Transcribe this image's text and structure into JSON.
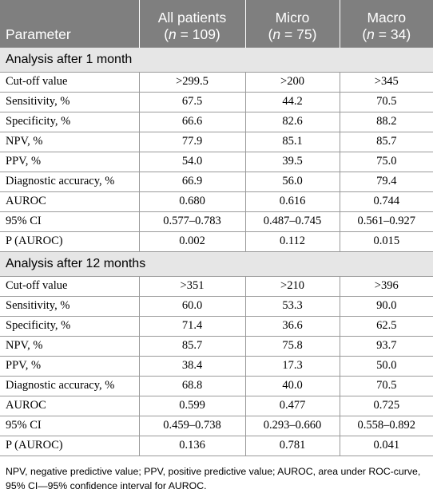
{
  "header": {
    "parameter": "Parameter",
    "cols": [
      {
        "name": "All patients",
        "n_prefix": "(",
        "n_var": "n",
        "n_eq": " = 109)"
      },
      {
        "name": "Micro",
        "n_prefix": "(",
        "n_var": "n",
        "n_eq": " = 75)"
      },
      {
        "name": "Macro",
        "n_prefix": "(",
        "n_var": "n",
        "n_eq": " = 34)"
      }
    ]
  },
  "sections": [
    {
      "title": "Analysis after 1 month",
      "rows": [
        {
          "label": "Cut-off value",
          "values": [
            ">299.5",
            ">200",
            ">345"
          ]
        },
        {
          "label": "Sensitivity, %",
          "values": [
            "67.5",
            "44.2",
            "70.5"
          ]
        },
        {
          "label": "Specificity, %",
          "values": [
            "66.6",
            "82.6",
            "88.2"
          ]
        },
        {
          "label": "NPV, %",
          "values": [
            "77.9",
            "85.1",
            "85.7"
          ]
        },
        {
          "label": "PPV, %",
          "values": [
            "54.0",
            "39.5",
            "75.0"
          ]
        },
        {
          "label": "Diagnostic accuracy, %",
          "values": [
            "66.9",
            "56.0",
            "79.4"
          ]
        },
        {
          "label": "AUROC",
          "values": [
            "0.680",
            "0.616",
            "0.744"
          ]
        },
        {
          "label": "95% CI",
          "values": [
            "0.577–0.783",
            "0.487–0.745",
            "0.561–0.927"
          ]
        },
        {
          "label": "P (AUROC)",
          "values": [
            "0.002",
            "0.112",
            "0.015"
          ]
        }
      ]
    },
    {
      "title": "Analysis after 12 months",
      "rows": [
        {
          "label": "Cut-off value",
          "values": [
            ">351",
            ">210",
            ">396"
          ]
        },
        {
          "label": "Sensitivity, %",
          "values": [
            "60.0",
            "53.3",
            "90.0"
          ]
        },
        {
          "label": "Specificity, %",
          "values": [
            "71.4",
            "36.6",
            "62.5"
          ]
        },
        {
          "label": "NPV, %",
          "values": [
            "85.7",
            "75.8",
            "93.7"
          ]
        },
        {
          "label": "PPV, %",
          "values": [
            "38.4",
            "17.3",
            "50.0"
          ]
        },
        {
          "label": "Diagnostic accuracy, %",
          "values": [
            "68.8",
            "40.0",
            "70.5"
          ]
        },
        {
          "label": "AUROC",
          "values": [
            "0.599",
            "0.477",
            "0.725"
          ]
        },
        {
          "label": "95% CI",
          "values": [
            "0.459–0.738",
            "0.293–0.660",
            "0.558–0.892"
          ]
        },
        {
          "label": "P (AUROC)",
          "values": [
            "0.136",
            "0.781",
            "0.041"
          ]
        }
      ]
    }
  ],
  "footnote": "NPV, negative predictive value; PPV, positive predictive value; AUROC, area under ROC-curve, 95% CI—95% confidence interval for AUROC."
}
